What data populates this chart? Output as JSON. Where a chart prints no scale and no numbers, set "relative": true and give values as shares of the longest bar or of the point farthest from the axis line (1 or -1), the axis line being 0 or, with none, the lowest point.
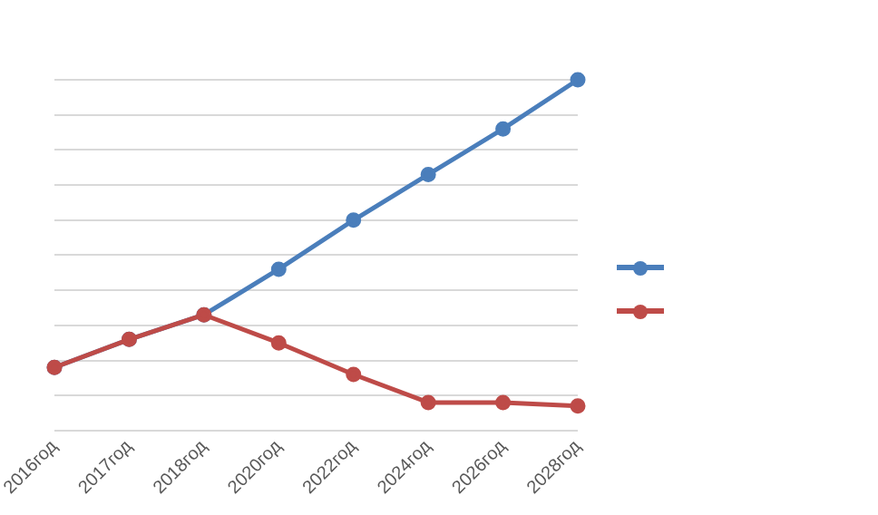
{
  "chart_data": {
    "type": "line",
    "relative": true,
    "categories": [
      "2016год",
      "2017год",
      "2018год",
      "2020год",
      "2022год",
      "2024год",
      "2026год",
      "2028год"
    ],
    "series": [
      {
        "color": "#4a7ebb",
        "values": [
          0.18,
          0.26,
          0.33,
          0.46,
          0.6,
          0.73,
          0.86,
          1
        ]
      },
      {
        "color": "#be4b48",
        "values": [
          0.18,
          0.26,
          0.33,
          0.25,
          0.16,
          0.08,
          0.08,
          0.07
        ]
      }
    ],
    "marker": "circle",
    "line_style": "solid",
    "grid": "y"
  }
}
